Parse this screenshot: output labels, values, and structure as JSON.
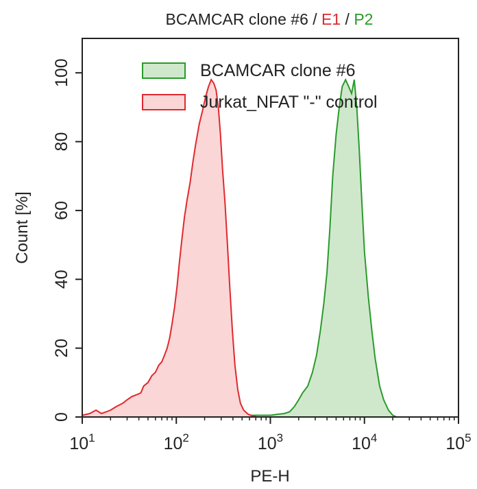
{
  "chart_data": {
    "type": "area",
    "title": {
      "parts": [
        {
          "text": "BCAMCAR clone #6",
          "color": "#222222"
        },
        {
          "text": " / ",
          "color": "#222222"
        },
        {
          "text": "E1",
          "color": "#e0282e"
        },
        {
          "text": " / ",
          "color": "#222222"
        },
        {
          "text": "P2",
          "color": "#2a9a2a"
        }
      ]
    },
    "xlabel": "PE-H",
    "ylabel": "Count [%]",
    "xscale": "log",
    "xlim": [
      10,
      100000
    ],
    "ylim": [
      0,
      110
    ],
    "xticks": [
      {
        "value": 10,
        "base": "10",
        "exp": "1"
      },
      {
        "value": 100,
        "base": "10",
        "exp": "2"
      },
      {
        "value": 1000,
        "base": "10",
        "exp": "3"
      },
      {
        "value": 10000,
        "base": "10",
        "exp": "4"
      },
      {
        "value": 100000,
        "base": "10",
        "exp": "5"
      }
    ],
    "yticks": [
      {
        "value": 0,
        "label": "0"
      },
      {
        "value": 20,
        "label": "20"
      },
      {
        "value": 40,
        "label": "40"
      },
      {
        "value": 60,
        "label": "60"
      },
      {
        "value": 80,
        "label": "80"
      },
      {
        "value": 100,
        "label": "100"
      }
    ],
    "legend_position": "top-right",
    "series": [
      {
        "name": "BCAMCAR clone #6",
        "line_color": "#2a9a2a",
        "fill_color": "#cfe8cc",
        "points": [
          [
            200,
            0
          ],
          [
            400,
            0.3
          ],
          [
            700,
            0.5
          ],
          [
            1000,
            0.5
          ],
          [
            1200,
            0.8
          ],
          [
            1400,
            1
          ],
          [
            1600,
            1.5
          ],
          [
            1800,
            3
          ],
          [
            2000,
            5
          ],
          [
            2200,
            7
          ],
          [
            2500,
            9
          ],
          [
            2800,
            13
          ],
          [
            3100,
            18
          ],
          [
            3400,
            25
          ],
          [
            3700,
            33
          ],
          [
            4000,
            42
          ],
          [
            4300,
            55
          ],
          [
            4600,
            70
          ],
          [
            5000,
            82
          ],
          [
            5400,
            90
          ],
          [
            5800,
            96
          ],
          [
            6300,
            98
          ],
          [
            6800,
            96
          ],
          [
            7300,
            94
          ],
          [
            7800,
            98
          ],
          [
            8300,
            90
          ],
          [
            8800,
            78
          ],
          [
            9400,
            62
          ],
          [
            10000,
            48
          ],
          [
            11000,
            35
          ],
          [
            12000,
            25
          ],
          [
            13000,
            17
          ],
          [
            14500,
            9
          ],
          [
            16000,
            5
          ],
          [
            18000,
            2
          ],
          [
            20000,
            0.5
          ],
          [
            22000,
            0
          ]
        ]
      },
      {
        "name": "Jurkat_NFAT \"-\" control",
        "line_color": "#e0282e",
        "fill_color": "#fad6d6",
        "points": [
          [
            10,
            0.5
          ],
          [
            12,
            1
          ],
          [
            14,
            2
          ],
          [
            16,
            1
          ],
          [
            18,
            1.5
          ],
          [
            20,
            2
          ],
          [
            23,
            3
          ],
          [
            27,
            4
          ],
          [
            30,
            5
          ],
          [
            34,
            6
          ],
          [
            38,
            6.5
          ],
          [
            42,
            7
          ],
          [
            45,
            9
          ],
          [
            50,
            10
          ],
          [
            55,
            12
          ],
          [
            60,
            13
          ],
          [
            65,
            15
          ],
          [
            70,
            16
          ],
          [
            75,
            18
          ],
          [
            80,
            20
          ],
          [
            85,
            23
          ],
          [
            90,
            27
          ],
          [
            96,
            32
          ],
          [
            102,
            38
          ],
          [
            108,
            45
          ],
          [
            115,
            52
          ],
          [
            122,
            58
          ],
          [
            130,
            63
          ],
          [
            140,
            68
          ],
          [
            150,
            74
          ],
          [
            160,
            79
          ],
          [
            175,
            85
          ],
          [
            190,
            89
          ],
          [
            205,
            93
          ],
          [
            220,
            96
          ],
          [
            235,
            98
          ],
          [
            250,
            97
          ],
          [
            265,
            95
          ],
          [
            280,
            90
          ],
          [
            295,
            82
          ],
          [
            310,
            72
          ],
          [
            330,
            62
          ],
          [
            350,
            50
          ],
          [
            370,
            38
          ],
          [
            395,
            25
          ],
          [
            420,
            15
          ],
          [
            450,
            8
          ],
          [
            480,
            4
          ],
          [
            520,
            2
          ],
          [
            580,
            0.8
          ],
          [
            650,
            0.3
          ],
          [
            720,
            0
          ]
        ]
      }
    ]
  }
}
